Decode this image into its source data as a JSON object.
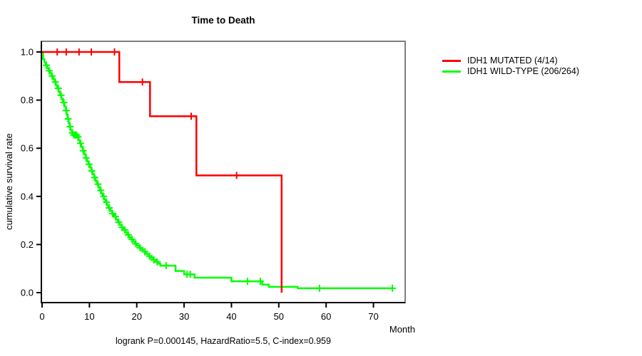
{
  "chart_data": {
    "type": "line",
    "chart_kind": "kaplan-meier-step",
    "title": "Time to Death",
    "xlabel": "Month",
    "ylabel": "cumulative survival rate",
    "annotation": "logrank P=0.000145, HazardRatio=5.5, C-index=0.959",
    "stats": {
      "logrank_p": "0.000145",
      "hazard_ratio": "5.5",
      "c_index": "0.959"
    },
    "xlim": [
      0,
      76.7
    ],
    "ylim": [
      0,
      1.0
    ],
    "xticks": [
      0,
      10,
      20,
      30,
      40,
      50,
      60,
      70
    ],
    "xtick_labels": [
      "0",
      "10",
      "20",
      "30",
      "40",
      "50",
      "60",
      "70"
    ],
    "yticks": [
      0,
      0.2,
      0.4,
      0.6,
      0.8,
      1.0
    ],
    "ytick_labels": [
      "0.0",
      "0.2",
      "0.4",
      "0.6",
      "0.8",
      "1.0"
    ],
    "grid": false,
    "legend_position": "right-outside",
    "series": [
      {
        "id": "mutated",
        "name": "IDH1 MUTATED (4/14)",
        "color": "#ff0000",
        "events": 4,
        "n": 14,
        "steps": [
          [
            0,
            1.0
          ],
          [
            16.3,
            0.875
          ],
          [
            22.8,
            0.733
          ],
          [
            32.6,
            0.487
          ],
          [
            50.6,
            0.0
          ]
        ],
        "censor_months": [
          3.2,
          5.1,
          7.8,
          10.4,
          15.3,
          21.2,
          31.5,
          41.1
        ]
      },
      {
        "id": "wildtype",
        "name": "IDH1 WILD-TYPE (206/264)",
        "color": "#00ff00",
        "events": 206,
        "n": 264,
        "steps": [
          [
            0,
            1.0
          ],
          [
            0.2,
            0.97
          ],
          [
            0.5,
            0.957
          ],
          [
            0.8,
            0.945
          ],
          [
            1.1,
            0.933
          ],
          [
            1.4,
            0.922
          ],
          [
            1.7,
            0.912
          ],
          [
            2.0,
            0.9
          ],
          [
            2.3,
            0.888
          ],
          [
            2.6,
            0.875
          ],
          [
            2.9,
            0.862
          ],
          [
            3.2,
            0.849
          ],
          [
            3.5,
            0.835
          ],
          [
            3.8,
            0.82
          ],
          [
            4.1,
            0.805
          ],
          [
            4.4,
            0.79
          ],
          [
            4.7,
            0.774
          ],
          [
            5.0,
            0.757
          ],
          [
            5.2,
            0.74
          ],
          [
            5.4,
            0.722
          ],
          [
            5.6,
            0.705
          ],
          [
            5.8,
            0.69
          ],
          [
            6.0,
            0.676
          ],
          [
            6.3,
            0.664
          ],
          [
            6.6,
            0.655
          ],
          [
            7.4,
            0.647
          ],
          [
            7.7,
            0.634
          ],
          [
            8.0,
            0.62
          ],
          [
            8.3,
            0.605
          ],
          [
            8.6,
            0.59
          ],
          [
            8.9,
            0.575
          ],
          [
            9.2,
            0.56
          ],
          [
            9.5,
            0.546
          ],
          [
            9.8,
            0.533
          ],
          [
            10.1,
            0.52
          ],
          [
            10.4,
            0.506
          ],
          [
            10.7,
            0.492
          ],
          [
            11.0,
            0.478
          ],
          [
            11.3,
            0.464
          ],
          [
            11.6,
            0.451
          ],
          [
            11.9,
            0.438
          ],
          [
            12.2,
            0.425
          ],
          [
            12.5,
            0.412
          ],
          [
            12.8,
            0.4
          ],
          [
            13.1,
            0.388
          ],
          [
            13.4,
            0.376
          ],
          [
            13.7,
            0.364
          ],
          [
            14.0,
            0.352
          ],
          [
            14.4,
            0.34
          ],
          [
            14.8,
            0.328
          ],
          [
            15.2,
            0.316
          ],
          [
            15.6,
            0.304
          ],
          [
            16.0,
            0.293
          ],
          [
            16.4,
            0.282
          ],
          [
            16.8,
            0.271
          ],
          [
            17.2,
            0.26
          ],
          [
            17.6,
            0.25
          ],
          [
            18.0,
            0.24
          ],
          [
            18.4,
            0.23
          ],
          [
            18.8,
            0.221
          ],
          [
            19.2,
            0.212
          ],
          [
            19.6,
            0.203
          ],
          [
            20.0,
            0.195
          ],
          [
            20.5,
            0.186
          ],
          [
            21.0,
            0.178
          ],
          [
            21.5,
            0.17
          ],
          [
            22.0,
            0.161
          ],
          [
            22.5,
            0.152
          ],
          [
            23.0,
            0.144
          ],
          [
            23.5,
            0.136
          ],
          [
            24.0,
            0.128
          ],
          [
            24.5,
            0.12
          ],
          [
            25.0,
            0.112
          ],
          [
            28.2,
            0.09
          ],
          [
            30.0,
            0.076
          ],
          [
            32.2,
            0.062
          ],
          [
            40.0,
            0.047
          ],
          [
            46.5,
            0.033
          ],
          [
            47.9,
            0.024
          ],
          [
            54.0,
            0.018
          ],
          [
            74.0,
            0.018
          ]
        ],
        "censor_months": [
          0.9,
          1.5,
          2.1,
          2.8,
          3.4,
          4.0,
          4.6,
          5.1,
          5.5,
          5.9,
          6.4,
          6.7,
          7.0,
          7.3,
          7.6,
          8.1,
          8.7,
          9.3,
          9.9,
          10.5,
          11.1,
          11.8,
          12.4,
          13.0,
          13.6,
          14.2,
          14.9,
          15.5,
          16.2,
          16.9,
          17.5,
          18.2,
          19.0,
          19.8,
          20.7,
          21.7,
          22.7,
          23.6,
          24.3,
          26.2,
          30.6,
          31.3,
          43.4,
          46.1,
          58.6,
          74.0
        ]
      }
    ]
  }
}
